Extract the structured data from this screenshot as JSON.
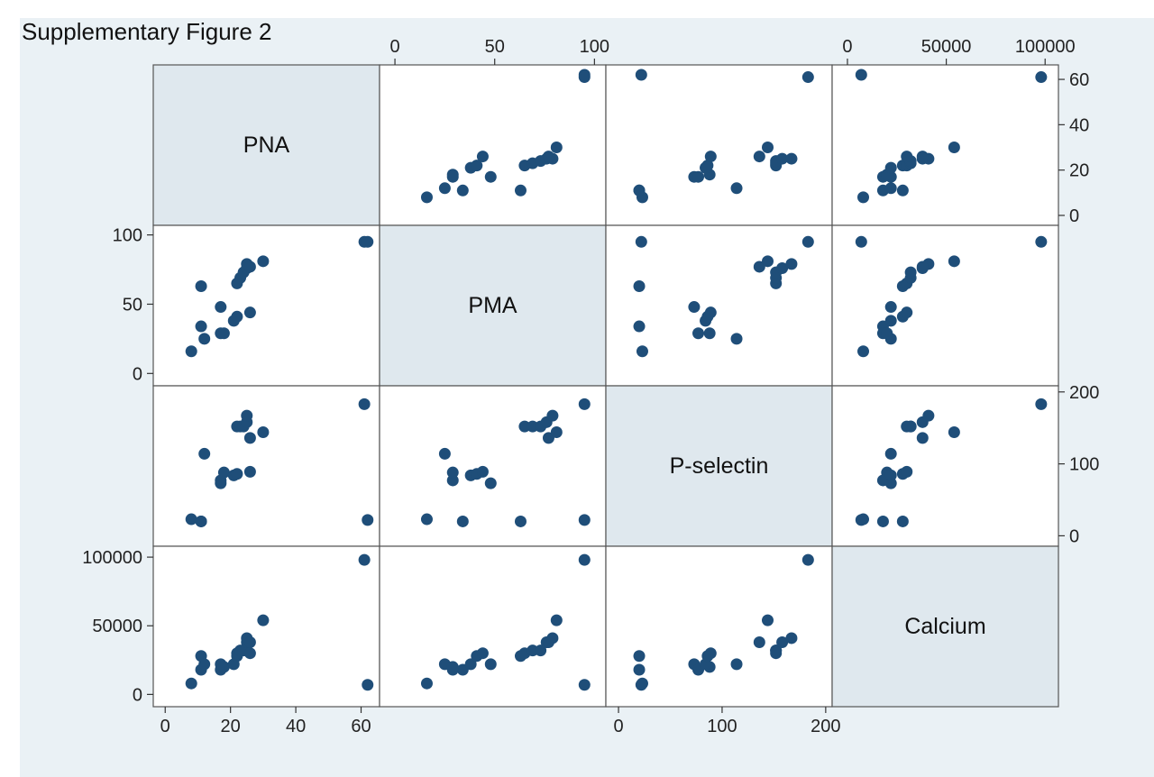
{
  "figure_title": "Supplementary Figure 2",
  "chart_data": {
    "type": "scatter",
    "variables": [
      "PNA",
      "PMA",
      "P-selectin",
      "Calcium"
    ],
    "ranges": {
      "PNA": [
        -2,
        64
      ],
      "PMA": [
        -5,
        103
      ],
      "P-selectin": [
        -7,
        201
      ],
      "Calcium": [
        -5000,
        104000
      ]
    },
    "ticks": {
      "PNA": [
        0,
        20,
        40,
        60
      ],
      "PMA": [
        0,
        50,
        100
      ],
      "P-selectin": [
        0,
        100,
        200
      ],
      "Calcium": [
        0,
        50000,
        100000
      ]
    },
    "observations": [
      {
        "PNA": 8,
        "PMA": 16,
        "P-selectin": 23,
        "Calcium": 8000
      },
      {
        "PNA": 11,
        "PMA": 63,
        "P-selectin": 20,
        "Calcium": 28000
      },
      {
        "PNA": 11,
        "PMA": 34,
        "P-selectin": 20,
        "Calcium": 18000
      },
      {
        "PNA": 12,
        "PMA": 25,
        "P-selectin": 114,
        "Calcium": 22000
      },
      {
        "PNA": 17,
        "PMA": 48,
        "P-selectin": 73,
        "Calcium": 22000
      },
      {
        "PNA": 17,
        "PMA": 29,
        "P-selectin": 77,
        "Calcium": 18000
      },
      {
        "PNA": 18,
        "PMA": 29,
        "P-selectin": 88,
        "Calcium": 20000
      },
      {
        "PNA": 21,
        "PMA": 38,
        "P-selectin": 84,
        "Calcium": 22000
      },
      {
        "PNA": 22,
        "PMA": 41,
        "P-selectin": 86,
        "Calcium": 28000
      },
      {
        "PNA": 22,
        "PMA": 65,
        "P-selectin": 152,
        "Calcium": 30000
      },
      {
        "PNA": 23,
        "PMA": 69,
        "P-selectin": 152,
        "Calcium": 32000
      },
      {
        "PNA": 24,
        "PMA": 73,
        "P-selectin": 152,
        "Calcium": 32000
      },
      {
        "PNA": 25,
        "PMA": 76,
        "P-selectin": 158,
        "Calcium": 38000
      },
      {
        "PNA": 25,
        "PMA": 79,
        "P-selectin": 167,
        "Calcium": 41000
      },
      {
        "PNA": 26,
        "PMA": 44,
        "P-selectin": 89,
        "Calcium": 30000
      },
      {
        "PNA": 26,
        "PMA": 77,
        "P-selectin": 136,
        "Calcium": 38000
      },
      {
        "PNA": 30,
        "PMA": 81,
        "P-selectin": 144,
        "Calcium": 54000
      },
      {
        "PNA": 61,
        "PMA": 95,
        "P-selectin": 183,
        "Calcium": 98000
      },
      {
        "PNA": 62,
        "PMA": 95,
        "P-selectin": 22,
        "Calcium": 7000
      }
    ],
    "marker_color": "#1f4e79",
    "diagonal_fill": "#dfe8ee",
    "background": "#eaf1f5",
    "grid": false
  }
}
